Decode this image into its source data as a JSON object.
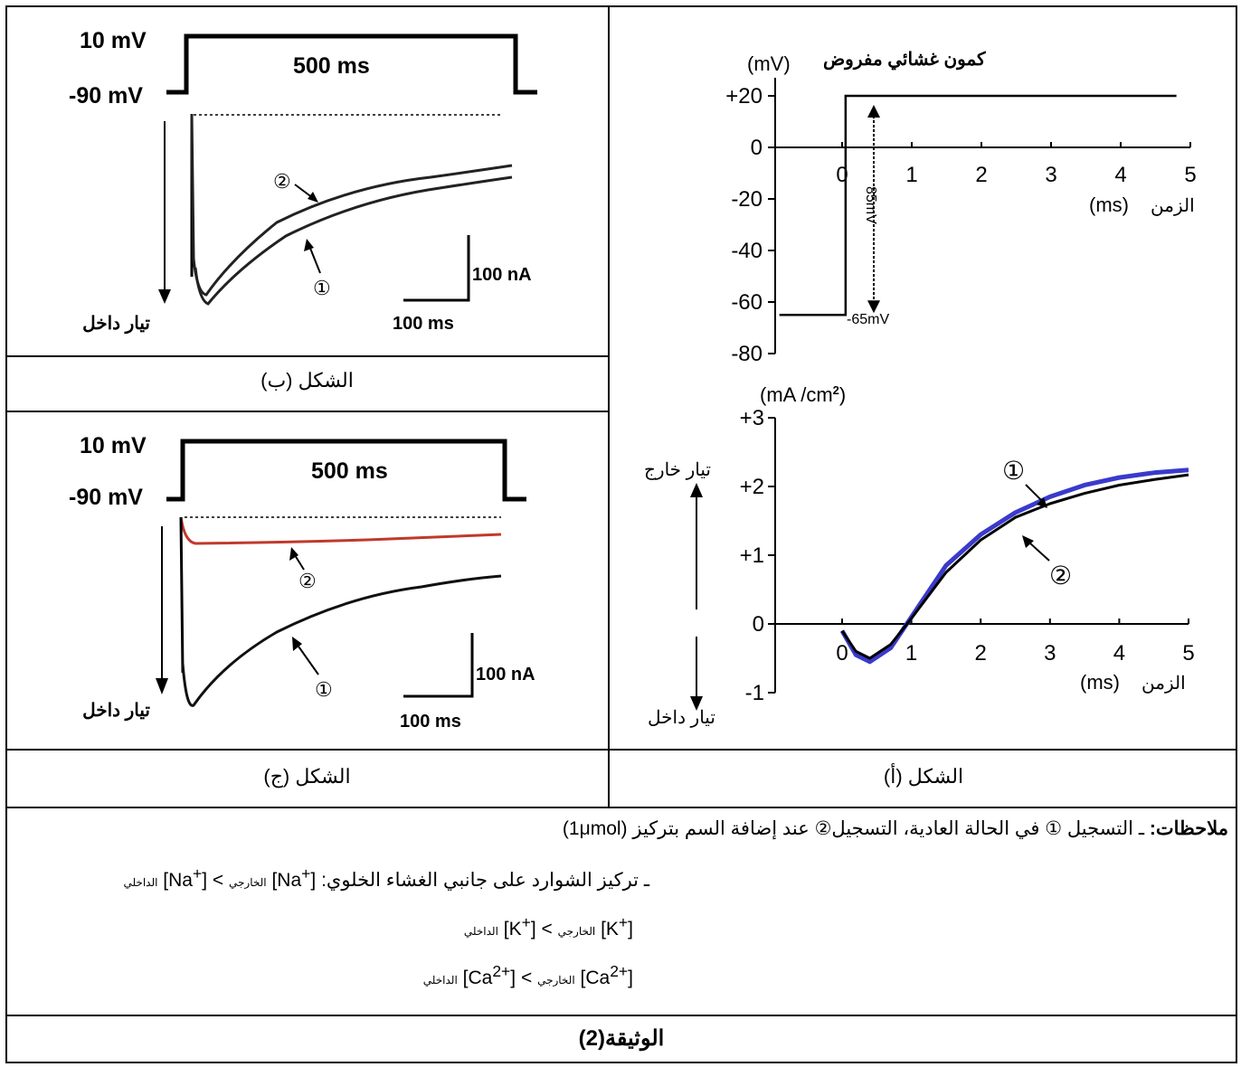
{
  "figure_a": {
    "voltage_panel": {
      "y_label_ar": "كمون غشائي مفروض",
      "y_unit": "(mV)",
      "y_ticks": [
        "+20",
        "0",
        "-20",
        "-40",
        "-60",
        "-80"
      ],
      "x_ticks": [
        "0",
        "1",
        "2",
        "3",
        "4",
        "5"
      ],
      "x_label_ar": "الزمن",
      "x_unit": "(ms)",
      "step_annotation": "85mV",
      "rest_annotation": "-65mV",
      "chart_data": {
        "type": "line",
        "xlim": [
          -0.9,
          5
        ],
        "ylim": [
          -80,
          20
        ],
        "series": [
          {
            "x": [
              -0.9,
              0.05,
              0.05,
              4.8
            ],
            "y": [
              -65,
              -65,
              20,
              20
            ]
          }
        ]
      }
    },
    "current_panel": {
      "y_unit": "(mA /cm",
      "y_unit_sup": "2",
      "y_unit_close": ")",
      "y_ticks": [
        "+3",
        "+2",
        "+1",
        "0",
        "-1"
      ],
      "x_ticks": [
        "0",
        "1",
        "2",
        "3",
        "4",
        "5"
      ],
      "x_label_ar": "الزمن",
      "x_unit": "(ms)",
      "outward_label": "تيار خارج",
      "inward_label": "تيار داخل",
      "label_1": "①",
      "label_2": "②",
      "colors": {
        "curve_1": "#3a3acc",
        "curve_2": "#000000"
      },
      "chart_data": {
        "type": "line",
        "xlim": [
          -0.9,
          5
        ],
        "ylim": [
          -1,
          3
        ],
        "series": [
          {
            "x": [
              0,
              0.2,
              0.4,
              0.7,
              1.0,
              1.5,
              2.0,
              2.5,
              3.0,
              3.5,
              4.0,
              4.5,
              5.0
            ],
            "y": [
              -0.1,
              -0.45,
              -0.55,
              -0.35,
              0.1,
              0.85,
              1.3,
              1.62,
              1.85,
              2.02,
              2.13,
              2.2,
              2.24
            ]
          },
          {
            "x": [
              0,
              0.2,
              0.4,
              0.7,
              1.0,
              1.5,
              2.0,
              2.5,
              3.0,
              3.5,
              4.0,
              4.5,
              5.0
            ],
            "y": [
              -0.1,
              -0.4,
              -0.5,
              -0.3,
              0.08,
              0.75,
              1.22,
              1.55,
              1.75,
              1.9,
              2.02,
              2.1,
              2.17
            ]
          }
        ]
      }
    },
    "caption": "الشكل (أ)"
  },
  "figure_b": {
    "v_high": "10 mV",
    "v_low": "-90 mV",
    "duration": "500 ms",
    "scale_current": "100 nA",
    "scale_time": "100 ms",
    "inward_label": "تيار داخل",
    "label_1": "①",
    "label_2": "②",
    "caption": "الشكل (ب)"
  },
  "figure_c": {
    "v_high": "10 mV",
    "v_low": "-90 mV",
    "duration": "500 ms",
    "scale_current": "100 nA",
    "scale_time": "100 ms",
    "inward_label": "تيار داخل",
    "label_1": "①",
    "label_2": "②",
    "colors": {
      "trace_2": "#c0392b",
      "trace_1": "#000000"
    },
    "caption": "الشكل (ج)"
  },
  "notes": {
    "title": "ملاحظات:",
    "line1": "ـ التسجيل ① في الحالة العادية، التسجيل② عند إضافة السم بتركيز (1μmol)",
    "line2_prefix": "ـ تركيز الشوارد على جانبي الغشاء الخلوي:",
    "na_out": "[Na",
    "na_sup": "+",
    "sub_out": "الخارجي",
    "sub_in": "الداخلي",
    "k_out": "[K",
    "k_sup": "+",
    "ca_out": "[Ca",
    "ca_sup": "2+",
    "gt": ">"
  },
  "document_title": "الوثيقة(2)"
}
